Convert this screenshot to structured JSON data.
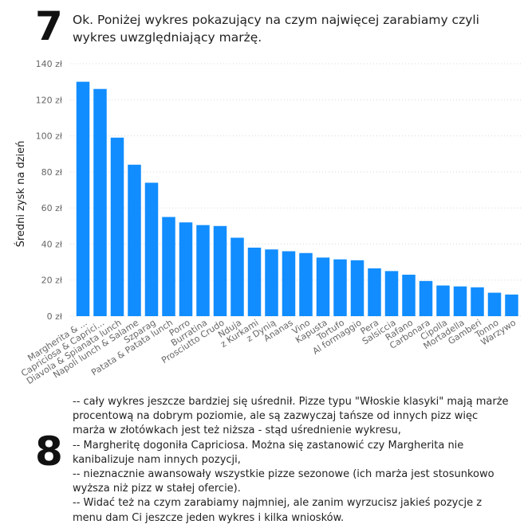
{
  "step7": {
    "number": "7",
    "text": "Ok. Poniżej wykres pokazujący na czym najwięcej zarabiamy czyli wykres uwzględniający marżę."
  },
  "chart_data": {
    "type": "bar",
    "ylabel": "Średni zysk na dzień",
    "xlabel": "",
    "ylim": [
      0,
      140
    ],
    "yticks": [
      "0 zł",
      "20 zł",
      "40 zł",
      "60 zł",
      "80 zł",
      "100 zł",
      "120 zł",
      "140 zł"
    ],
    "grid": true,
    "color": "#118DFF",
    "categories": [
      "Margherita & ...",
      "Capriciosa & Caprici...",
      "Diavola & Spianata lunch",
      "Napoli lunch & Salame",
      "Szparag",
      "Patata & Patata lunch",
      "Porro",
      "Burratina",
      "Prosciutto Crudo",
      "Nduja",
      "z Kurkami",
      "z Dynią",
      "Ananas",
      "Vino",
      "Kapusta",
      "Tortufo",
      "Al formaggio",
      "Pera",
      "Salsiccia",
      "Rafano",
      "Carbonara",
      "Cipolla",
      "Mortadella",
      "Gamberi",
      "Tonno",
      "Warzywo"
    ],
    "values": [
      130,
      126,
      99,
      84,
      74,
      55,
      52,
      50.5,
      50,
      43.5,
      38,
      37,
      36,
      35,
      32.5,
      31.5,
      31,
      26.5,
      25,
      23,
      19.5,
      17,
      16.5,
      16,
      13,
      12
    ]
  },
  "step8": {
    "number": "8",
    "lines": [
      "-- cały wykres jeszcze bardziej się uśrednił. Pizze typu \"Włoskie klasyki\" mają marże procentową na dobrym poziomie, ale są zazwyczaj tańsze od innych pizz więc marża w złotówkach jest też niższa - stąd uśrednienie wykresu,",
      "-- Margheritę dogoniła Capriciosa. Można się zastanowić czy Margherita nie kanibalizuje nam innych pozycji,",
      "-- nieznacznie awansowały wszystkie pizze sezonowe (ich marża jest stosunkowo wyższa niż pizz w stałej ofercie).",
      "-- Widać też na czym zarabiamy najmniej, ale zanim wyrzucisz jakieś pozycje z menu dam Ci jeszcze jeden wykres i kilka wniosków."
    ]
  }
}
